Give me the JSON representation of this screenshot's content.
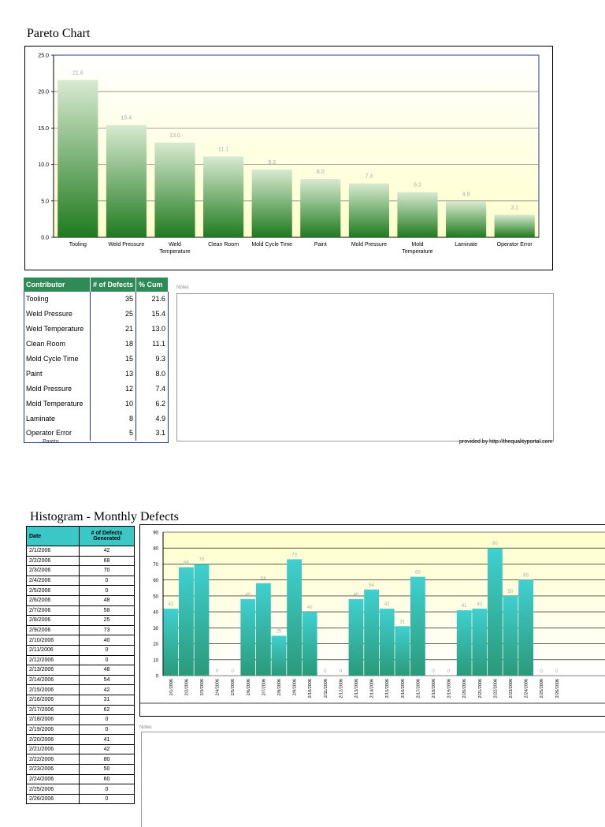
{
  "pareto": {
    "title": "Pareto Chart",
    "notes_label": "Notes",
    "credit": "provided by http://thequalityportal.com",
    "sheet_name": "Pareto",
    "table_headers": [
      "Contributor",
      "# of Defects",
      "% Cum"
    ],
    "rows": [
      {
        "contributor": "Tooling",
        "defects": "35",
        "pct": "21.6"
      },
      {
        "contributor": "Weld Pressure",
        "defects": "25",
        "pct": "15.4"
      },
      {
        "contributor": "Weld Temperature",
        "defects": "21",
        "pct": "13.0"
      },
      {
        "contributor": "Clean Room",
        "defects": "18",
        "pct": "11.1"
      },
      {
        "contributor": "Mold Cycle Time",
        "defects": "15",
        "pct": "9.3"
      },
      {
        "contributor": "Paint",
        "defects": "13",
        "pct": "8.0"
      },
      {
        "contributor": "Mold Pressure",
        "defects": "12",
        "pct": "7.4"
      },
      {
        "contributor": "Mold Temperature",
        "defects": "10",
        "pct": "6.2"
      },
      {
        "contributor": "Laminate",
        "defects": "8",
        "pct": "4.9"
      },
      {
        "contributor": "Operator Error",
        "defects": "5",
        "pct": "3.1"
      }
    ]
  },
  "histogram": {
    "title": "Histogram - Monthly Defects",
    "notes_label": "Notes",
    "table_headers": [
      "Date",
      "# of Defects Generated"
    ],
    "rows": [
      {
        "date": "2/1/2006",
        "value": "42"
      },
      {
        "date": "2/2/2006",
        "value": "68"
      },
      {
        "date": "2/3/2006",
        "value": "70"
      },
      {
        "date": "2/4/2006",
        "value": "0"
      },
      {
        "date": "2/5/2006",
        "value": "0"
      },
      {
        "date": "2/6/2006",
        "value": "48"
      },
      {
        "date": "2/7/2006",
        "value": "58"
      },
      {
        "date": "2/8/2006",
        "value": "25"
      },
      {
        "date": "2/9/2006",
        "value": "73"
      },
      {
        "date": "2/10/2006",
        "value": "40"
      },
      {
        "date": "2/11/2006",
        "value": "0"
      },
      {
        "date": "2/12/2006",
        "value": "0"
      },
      {
        "date": "2/13/2006",
        "value": "48"
      },
      {
        "date": "2/14/2006",
        "value": "54"
      },
      {
        "date": "2/15/2006",
        "value": "42"
      },
      {
        "date": "2/16/2006",
        "value": "31"
      },
      {
        "date": "2/17/2006",
        "value": "62"
      },
      {
        "date": "2/18/2006",
        "value": "0"
      },
      {
        "date": "2/19/2006",
        "value": "0"
      },
      {
        "date": "2/20/2006",
        "value": "41"
      },
      {
        "date": "2/21/2006",
        "value": "42"
      },
      {
        "date": "2/22/2006",
        "value": "80"
      },
      {
        "date": "2/23/2006",
        "value": "50"
      },
      {
        "date": "2/24/2006",
        "value": "60"
      },
      {
        "date": "2/25/2006",
        "value": "0"
      },
      {
        "date": "2/26/2006",
        "value": "0"
      }
    ]
  },
  "chart_data": [
    {
      "type": "bar",
      "title": "Pareto Chart",
      "categories": [
        "Tooling",
        "Weld Pressure",
        "Weld Temperature",
        "Clean Room",
        "Mold Cycle Time",
        "Paint",
        "Mold Pressure",
        "Mold Temperature",
        "Laminate",
        "Operator Error"
      ],
      "values": [
        21.6,
        15.4,
        13.0,
        11.1,
        9.3,
        8.0,
        7.4,
        6.2,
        4.9,
        3.1
      ],
      "value_labels": [
        "21.6",
        "15.4",
        "13.0",
        "11.1",
        "9.3",
        "8.0",
        "7.4",
        "6.2",
        "4.9",
        "3.1"
      ],
      "yticks": [
        "0.0",
        "5.0",
        "10.0",
        "15.0",
        "20.0",
        "25.0"
      ],
      "ylim": [
        0,
        25
      ],
      "colors": {
        "bar_top": "#d8ead0",
        "bar_bottom": "#1f7a1f",
        "plot_top": "#ffffff",
        "plot_bottom": "#ffffcc"
      }
    },
    {
      "type": "bar",
      "title": "Histogram - Monthly Defects",
      "categories": [
        "2/1/2006",
        "2/2/2006",
        "2/3/2006",
        "2/4/2006",
        "2/5/2006",
        "2/6/2006",
        "2/7/2006",
        "2/8/2006",
        "2/9/2006",
        "2/10/2006",
        "2/11/2006",
        "2/12/2006",
        "2/13/2006",
        "2/14/2006",
        "2/15/2006",
        "2/16/2006",
        "2/17/2006",
        "2/18/2006",
        "2/19/2006",
        "2/20/2006",
        "2/21/2006",
        "2/22/2006",
        "2/23/2006",
        "2/24/2006",
        "2/25/2006",
        "2/26/2006"
      ],
      "values": [
        42,
        68,
        70,
        0,
        0,
        48,
        58,
        25,
        73,
        40,
        0,
        0,
        48,
        54,
        42,
        31,
        62,
        0,
        0,
        41,
        42,
        80,
        50,
        60,
        0,
        0
      ],
      "yticks": [
        "0",
        "10",
        "20",
        "30",
        "40",
        "50",
        "60",
        "70",
        "80",
        "90"
      ],
      "ylim": [
        0,
        90
      ],
      "colors": {
        "bar_top": "#40d0d0",
        "bar_bottom": "#2a9a7a",
        "plot_top": "#ffffcc",
        "plot_bottom": "#ffffff"
      }
    }
  ]
}
